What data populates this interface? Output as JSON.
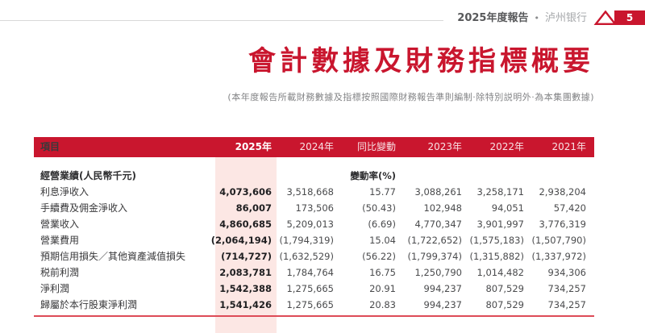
{
  "header": {
    "report_title": "2025年度報告",
    "separator": "•",
    "bank_name": "泸州银行",
    "page_number": "5"
  },
  "title": "會計數據及財務指標概要",
  "subtitle": "(本年度報告所載財務數據及指標按照國際財務報告準則編制·除特別説明外·為本集團數據)",
  "table": {
    "columns": [
      "項目",
      "2025年",
      "2024年",
      "同比變動",
      "2023年",
      "2022年",
      "2021年"
    ],
    "section": {
      "label": "經營業績(人民幣千元)",
      "variation_header": "變動率(%)"
    },
    "rows": [
      {
        "label": "利息淨收入",
        "values": [
          "4,073,606",
          "3,518,668",
          "15.77",
          "3,088,261",
          "3,258,171",
          "2,938,204"
        ]
      },
      {
        "label": "手續費及佣金淨收入",
        "values": [
          "86,007",
          "173,506",
          "(50.43)",
          "102,948",
          "94,051",
          "57,420"
        ]
      },
      {
        "label": "營業收入",
        "values": [
          "4,860,685",
          "5,209,013",
          "(6.69)",
          "4,770,347",
          "3,901,997",
          "3,776,319"
        ]
      },
      {
        "label": "營業費用",
        "values": [
          "(2,064,194)",
          "(1,794,319)",
          "15.04",
          "(1,722,652)",
          "(1,575,183)",
          "(1,507,790)"
        ]
      },
      {
        "label": "預期信用損失／其他資產減值損失",
        "values": [
          "(714,727)",
          "(1,632,529)",
          "(56.22)",
          "(1,799,374)",
          "(1,315,882)",
          "(1,337,972)"
        ]
      },
      {
        "label": "税前利潤",
        "values": [
          "2,083,781",
          "1,784,764",
          "16.75",
          "1,250,790",
          "1,014,482",
          "934,306"
        ]
      },
      {
        "label": "淨利潤",
        "values": [
          "1,542,388",
          "1,275,665",
          "20.91",
          "994,237",
          "807,529",
          "734,257"
        ]
      },
      {
        "label": "歸屬於本行股東淨利潤",
        "values": [
          "1,541,426",
          "1,275,665",
          "20.83",
          "994,237",
          "807,529",
          "734,257"
        ]
      }
    ]
  },
  "colors": {
    "accent": "#C9162E",
    "highlight_column": "#FCE7E4",
    "bottom_rule": "#DD4B57"
  }
}
